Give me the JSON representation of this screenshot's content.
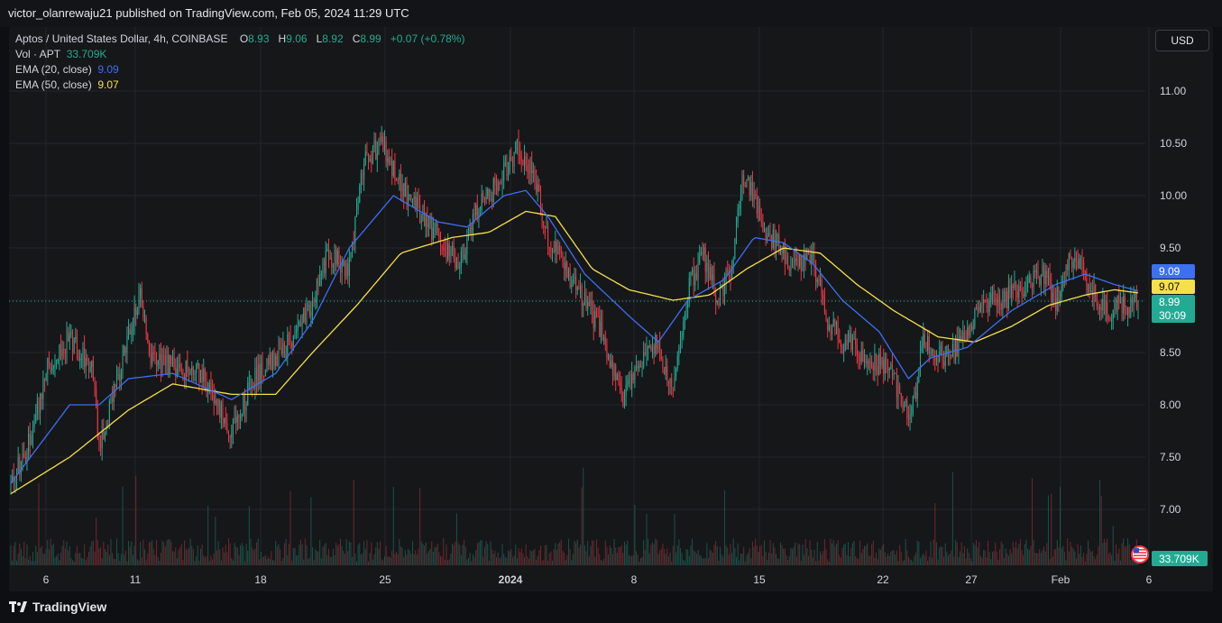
{
  "header": {
    "published": "victor_olanrewaju21 published on TradingView.com, Feb 05, 2024 11:29 UTC"
  },
  "legend": {
    "symbol": "Aptos / United States Dollar, 4h, COINBASE",
    "o_label": "O",
    "o_val": "8.93",
    "h_label": "H",
    "h_val": "9.06",
    "l_label": "L",
    "l_val": "8.92",
    "c_label": "C",
    "c_val": "8.99",
    "change": "+0.07 (+0.78%)",
    "vol_label": "Vol · APT",
    "vol_val": "33.709K",
    "ema20_label": "EMA (20, close)",
    "ema20_val": "9.09",
    "ema50_label": "EMA (50, close)",
    "ema50_val": "9.07"
  },
  "currency_button": "USD",
  "footer": {
    "logo_text": "TradingView"
  },
  "colors": {
    "up": "#22ab94",
    "down": "#f23645",
    "ema20": "#3d6ff2",
    "ema50": "#f5e04b",
    "last": "#22ab94"
  },
  "chart_data": {
    "type": "candlestick",
    "title": "Aptos / United States Dollar, 4h, COINBASE",
    "ylim": [
      6.75,
      11.3
    ],
    "y_ticks": [
      "11.00",
      "10.50",
      "10.00",
      "9.50",
      "9.00",
      "8.50",
      "8.00",
      "7.50",
      "7.00"
    ],
    "x_ticks": [
      "6",
      "11",
      "18",
      "25",
      "2024",
      "8",
      "15",
      "22",
      "27",
      "Feb",
      "6"
    ],
    "grid": true,
    "price_tags": [
      {
        "name": "ema20",
        "value": 9.09,
        "text": "9.09",
        "color": "#3d6ff2",
        "text_color": "#ffffff"
      },
      {
        "name": "ema50",
        "value": 9.07,
        "text": "9.07",
        "color": "#f5e04b",
        "text_color": "#0e0f12"
      },
      {
        "name": "last",
        "value": 8.99,
        "text": "8.99",
        "sub": "30:09",
        "color": "#22ab94",
        "text_color": "#ffffff"
      }
    ],
    "volume_tag": "33.709K",
    "last_price": 8.99,
    "close_path": [
      [
        0,
        7.25
      ],
      [
        10,
        7.55
      ],
      [
        25,
        8.35
      ],
      [
        40,
        8.65
      ],
      [
        55,
        8.35
      ],
      [
        60,
        7.6
      ],
      [
        70,
        8.1
      ],
      [
        88,
        9.05
      ],
      [
        95,
        8.45
      ],
      [
        110,
        8.35
      ],
      [
        130,
        8.3
      ],
      [
        150,
        7.75
      ],
      [
        165,
        8.25
      ],
      [
        185,
        8.5
      ],
      [
        205,
        9.0
      ],
      [
        215,
        9.45
      ],
      [
        230,
        9.3
      ],
      [
        240,
        10.35
      ],
      [
        252,
        10.5
      ],
      [
        265,
        10.1
      ],
      [
        280,
        9.8
      ],
      [
        295,
        9.5
      ],
      [
        305,
        9.35
      ],
      [
        318,
        9.9
      ],
      [
        330,
        10.1
      ],
      [
        345,
        10.45
      ],
      [
        355,
        10.25
      ],
      [
        365,
        9.6
      ],
      [
        375,
        9.35
      ],
      [
        385,
        9.1
      ],
      [
        400,
        8.75
      ],
      [
        415,
        8.05
      ],
      [
        425,
        8.3
      ],
      [
        438,
        8.6
      ],
      [
        450,
        8.15
      ],
      [
        460,
        9.1
      ],
      [
        470,
        9.45
      ],
      [
        480,
        9.0
      ],
      [
        490,
        9.35
      ],
      [
        498,
        10.2
      ],
      [
        505,
        10.0
      ],
      [
        512,
        9.65
      ],
      [
        520,
        9.55
      ],
      [
        530,
        9.35
      ],
      [
        545,
        9.4
      ],
      [
        555,
        8.8
      ],
      [
        565,
        8.6
      ],
      [
        575,
        8.55
      ],
      [
        585,
        8.4
      ],
      [
        598,
        8.35
      ],
      [
        605,
        8.0
      ],
      [
        612,
        7.9
      ],
      [
        620,
        8.6
      ],
      [
        630,
        8.45
      ],
      [
        645,
        8.55
      ],
      [
        660,
        8.95
      ],
      [
        675,
        9.0
      ],
      [
        690,
        9.15
      ],
      [
        700,
        9.25
      ],
      [
        710,
        9.0
      ],
      [
        722,
        9.45
      ],
      [
        730,
        9.2
      ],
      [
        745,
        8.85
      ],
      [
        752,
        8.96
      ],
      [
        760,
        8.93
      ],
      [
        766,
        8.99
      ]
    ],
    "ema20_path": [
      [
        0,
        7.25
      ],
      [
        40,
        8.0
      ],
      [
        60,
        8.0
      ],
      [
        80,
        8.25
      ],
      [
        110,
        8.3
      ],
      [
        150,
        8.05
      ],
      [
        180,
        8.3
      ],
      [
        205,
        8.8
      ],
      [
        230,
        9.5
      ],
      [
        260,
        10.0
      ],
      [
        290,
        9.75
      ],
      [
        310,
        9.7
      ],
      [
        335,
        10.0
      ],
      [
        350,
        10.05
      ],
      [
        365,
        9.8
      ],
      [
        390,
        9.25
      ],
      [
        420,
        8.85
      ],
      [
        440,
        8.6
      ],
      [
        460,
        9.0
      ],
      [
        485,
        9.2
      ],
      [
        505,
        9.6
      ],
      [
        525,
        9.55
      ],
      [
        545,
        9.35
      ],
      [
        565,
        9.0
      ],
      [
        590,
        8.7
      ],
      [
        610,
        8.25
      ],
      [
        625,
        8.45
      ],
      [
        650,
        8.55
      ],
      [
        680,
        8.9
      ],
      [
        710,
        9.15
      ],
      [
        730,
        9.25
      ],
      [
        750,
        9.15
      ],
      [
        766,
        9.09
      ]
    ],
    "ema50_path": [
      [
        0,
        7.15
      ],
      [
        40,
        7.5
      ],
      [
        80,
        7.95
      ],
      [
        110,
        8.2
      ],
      [
        150,
        8.1
      ],
      [
        180,
        8.1
      ],
      [
        205,
        8.5
      ],
      [
        235,
        8.95
      ],
      [
        265,
        9.45
      ],
      [
        300,
        9.6
      ],
      [
        325,
        9.65
      ],
      [
        350,
        9.85
      ],
      [
        370,
        9.8
      ],
      [
        395,
        9.3
      ],
      [
        420,
        9.1
      ],
      [
        450,
        9.0
      ],
      [
        475,
        9.05
      ],
      [
        500,
        9.3
      ],
      [
        525,
        9.5
      ],
      [
        550,
        9.45
      ],
      [
        575,
        9.15
      ],
      [
        600,
        8.9
      ],
      [
        630,
        8.65
      ],
      [
        655,
        8.6
      ],
      [
        680,
        8.75
      ],
      [
        705,
        8.95
      ],
      [
        730,
        9.05
      ],
      [
        750,
        9.1
      ],
      [
        766,
        9.07
      ]
    ]
  }
}
